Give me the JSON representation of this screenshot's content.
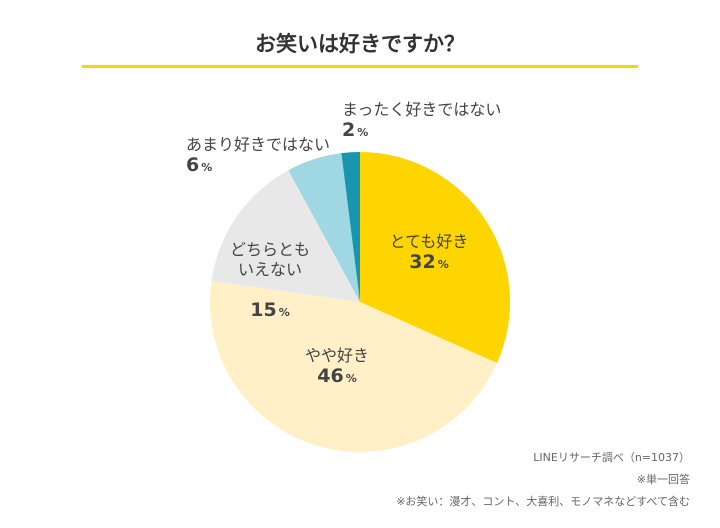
{
  "chart_data": {
    "type": "pie",
    "title": "お笑いは好きですか？",
    "start": "top",
    "direction": "clockwise",
    "unit": "%",
    "slices": [
      {
        "label": "とても好き",
        "value": 32,
        "color": "#FFD500"
      },
      {
        "label": "やや好き",
        "value": 46,
        "color": "#FFF0C7"
      },
      {
        "label": "どちらとも\nいえない",
        "value": 15,
        "color": "#E8E8E8"
      },
      {
        "label": "あまり好きではない",
        "value": 6,
        "color": "#9FD7E2"
      },
      {
        "label": "まったく好きではない",
        "value": 2,
        "color": "#1896B0"
      }
    ]
  },
  "notes": {
    "source": "LINEリサーチ調べ（n=1037）",
    "single": "※単一回答",
    "definition": "※お笑い：漫才、コント、大喜利、モノマネなどすべて含む"
  }
}
